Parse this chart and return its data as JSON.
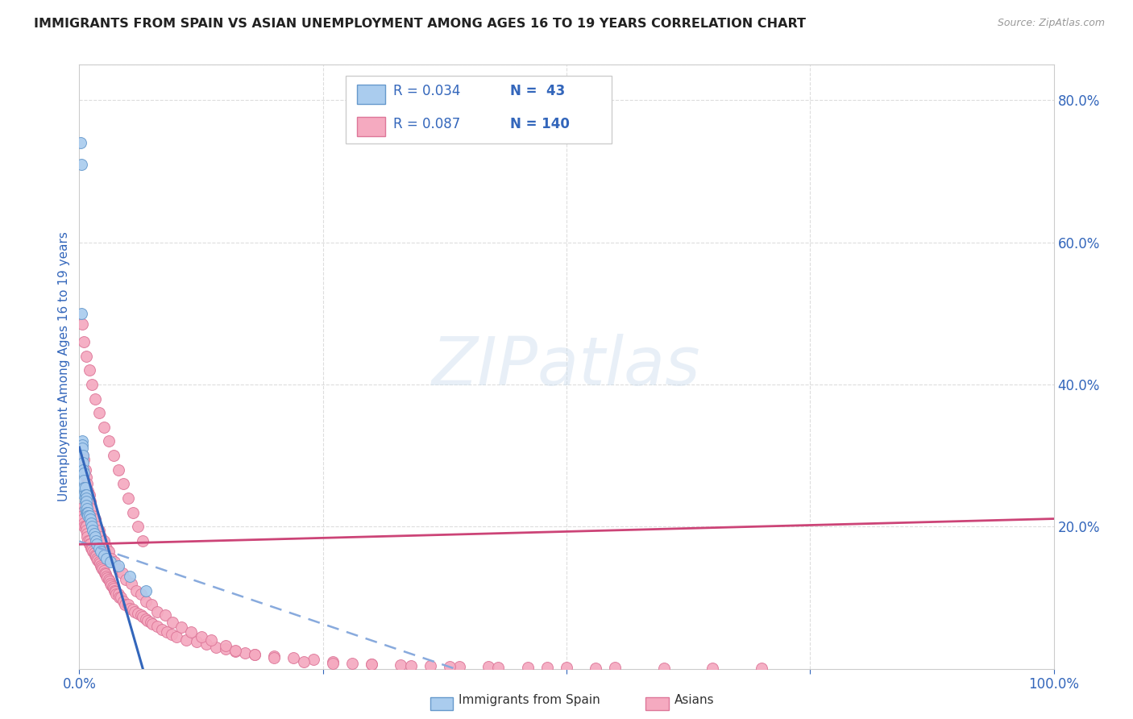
{
  "title": "IMMIGRANTS FROM SPAIN VS ASIAN UNEMPLOYMENT AMONG AGES 16 TO 19 YEARS CORRELATION CHART",
  "source": "Source: ZipAtlas.com",
  "ylabel": "Unemployment Among Ages 16 to 19 years",
  "xlim": [
    0,
    1.0
  ],
  "ylim": [
    0,
    0.85
  ],
  "ytick_labels_right": [
    "80.0%",
    "60.0%",
    "40.0%",
    "20.0%"
  ],
  "ytick_vals_right": [
    0.8,
    0.6,
    0.4,
    0.2
  ],
  "watermark": "ZIPatlas",
  "series1_color": "#aaccee",
  "series1_edge": "#6699cc",
  "series2_color": "#f5aac0",
  "series2_edge": "#dd7799",
  "series1_line_color": "#3366bb",
  "series2_line_color": "#cc4477",
  "series1_dash_color": "#88aadd",
  "background_color": "#ffffff",
  "grid_color": "#dddddd",
  "axis_color": "#3366bb",
  "legend_label1": "Immigrants from Spain",
  "legend_label2": "Asians",
  "spain_x": [
    0.001,
    0.002,
    0.002,
    0.003,
    0.003,
    0.003,
    0.004,
    0.004,
    0.004,
    0.005,
    0.005,
    0.005,
    0.005,
    0.006,
    0.006,
    0.006,
    0.006,
    0.007,
    0.007,
    0.007,
    0.007,
    0.007,
    0.008,
    0.008,
    0.009,
    0.009,
    0.01,
    0.011,
    0.012,
    0.013,
    0.014,
    0.015,
    0.016,
    0.017,
    0.018,
    0.02,
    0.022,
    0.025,
    0.028,
    0.032,
    0.04,
    0.052,
    0.068
  ],
  "spain_y": [
    0.74,
    0.71,
    0.5,
    0.32,
    0.315,
    0.31,
    0.3,
    0.29,
    0.28,
    0.275,
    0.265,
    0.255,
    0.245,
    0.255,
    0.245,
    0.235,
    0.225,
    0.245,
    0.24,
    0.235,
    0.23,
    0.22,
    0.225,
    0.22,
    0.22,
    0.215,
    0.215,
    0.21,
    0.205,
    0.2,
    0.195,
    0.19,
    0.185,
    0.18,
    0.175,
    0.17,
    0.165,
    0.16,
    0.155,
    0.15,
    0.145,
    0.13,
    0.11
  ],
  "asian_x": [
    0.001,
    0.002,
    0.003,
    0.003,
    0.004,
    0.005,
    0.005,
    0.006,
    0.007,
    0.007,
    0.008,
    0.008,
    0.009,
    0.01,
    0.01,
    0.011,
    0.012,
    0.013,
    0.014,
    0.015,
    0.016,
    0.017,
    0.018,
    0.019,
    0.02,
    0.021,
    0.022,
    0.023,
    0.024,
    0.025,
    0.026,
    0.027,
    0.028,
    0.029,
    0.03,
    0.031,
    0.032,
    0.033,
    0.034,
    0.035,
    0.036,
    0.037,
    0.038,
    0.04,
    0.041,
    0.043,
    0.045,
    0.047,
    0.05,
    0.052,
    0.055,
    0.057,
    0.06,
    0.063,
    0.065,
    0.068,
    0.07,
    0.073,
    0.075,
    0.08,
    0.085,
    0.09,
    0.095,
    0.1,
    0.11,
    0.12,
    0.13,
    0.14,
    0.15,
    0.16,
    0.17,
    0.18,
    0.2,
    0.22,
    0.24,
    0.26,
    0.28,
    0.3,
    0.33,
    0.36,
    0.39,
    0.42,
    0.46,
    0.5,
    0.55,
    0.6,
    0.65,
    0.7,
    0.004,
    0.005,
    0.006,
    0.007,
    0.008,
    0.009,
    0.01,
    0.011,
    0.012,
    0.014,
    0.016,
    0.018,
    0.02,
    0.022,
    0.025,
    0.028,
    0.03,
    0.033,
    0.036,
    0.04,
    0.044,
    0.048,
    0.053,
    0.058,
    0.063,
    0.068,
    0.074,
    0.08,
    0.088,
    0.096,
    0.105,
    0.115,
    0.125,
    0.135,
    0.15,
    0.16,
    0.18,
    0.2,
    0.23,
    0.26,
    0.3,
    0.34,
    0.38,
    0.43,
    0.48,
    0.53,
    0.003,
    0.005,
    0.007,
    0.01,
    0.013,
    0.016,
    0.02,
    0.025,
    0.03,
    0.035,
    0.04,
    0.045,
    0.05,
    0.055,
    0.06,
    0.065
  ],
  "asian_y": [
    0.225,
    0.22,
    0.22,
    0.215,
    0.21,
    0.205,
    0.2,
    0.2,
    0.2,
    0.195,
    0.19,
    0.185,
    0.18,
    0.18,
    0.175,
    0.175,
    0.17,
    0.168,
    0.165,
    0.163,
    0.16,
    0.158,
    0.155,
    0.153,
    0.15,
    0.148,
    0.145,
    0.143,
    0.14,
    0.138,
    0.135,
    0.133,
    0.13,
    0.128,
    0.125,
    0.123,
    0.12,
    0.118,
    0.115,
    0.113,
    0.11,
    0.108,
    0.105,
    0.105,
    0.1,
    0.1,
    0.095,
    0.09,
    0.09,
    0.085,
    0.083,
    0.08,
    0.078,
    0.075,
    0.073,
    0.07,
    0.068,
    0.065,
    0.063,
    0.06,
    0.055,
    0.052,
    0.048,
    0.045,
    0.04,
    0.038,
    0.035,
    0.03,
    0.028,
    0.025,
    0.022,
    0.02,
    0.018,
    0.015,
    0.013,
    0.01,
    0.008,
    0.006,
    0.005,
    0.004,
    0.003,
    0.003,
    0.002,
    0.002,
    0.002,
    0.001,
    0.001,
    0.001,
    0.3,
    0.295,
    0.28,
    0.27,
    0.26,
    0.25,
    0.245,
    0.235,
    0.225,
    0.215,
    0.21,
    0.2,
    0.195,
    0.185,
    0.18,
    0.17,
    0.165,
    0.155,
    0.15,
    0.14,
    0.135,
    0.125,
    0.12,
    0.11,
    0.105,
    0.095,
    0.09,
    0.08,
    0.075,
    0.065,
    0.058,
    0.052,
    0.045,
    0.04,
    0.032,
    0.026,
    0.02,
    0.015,
    0.01,
    0.008,
    0.006,
    0.004,
    0.003,
    0.002,
    0.002,
    0.001,
    0.485,
    0.46,
    0.44,
    0.42,
    0.4,
    0.38,
    0.36,
    0.34,
    0.32,
    0.3,
    0.28,
    0.26,
    0.24,
    0.22,
    0.2,
    0.18
  ]
}
